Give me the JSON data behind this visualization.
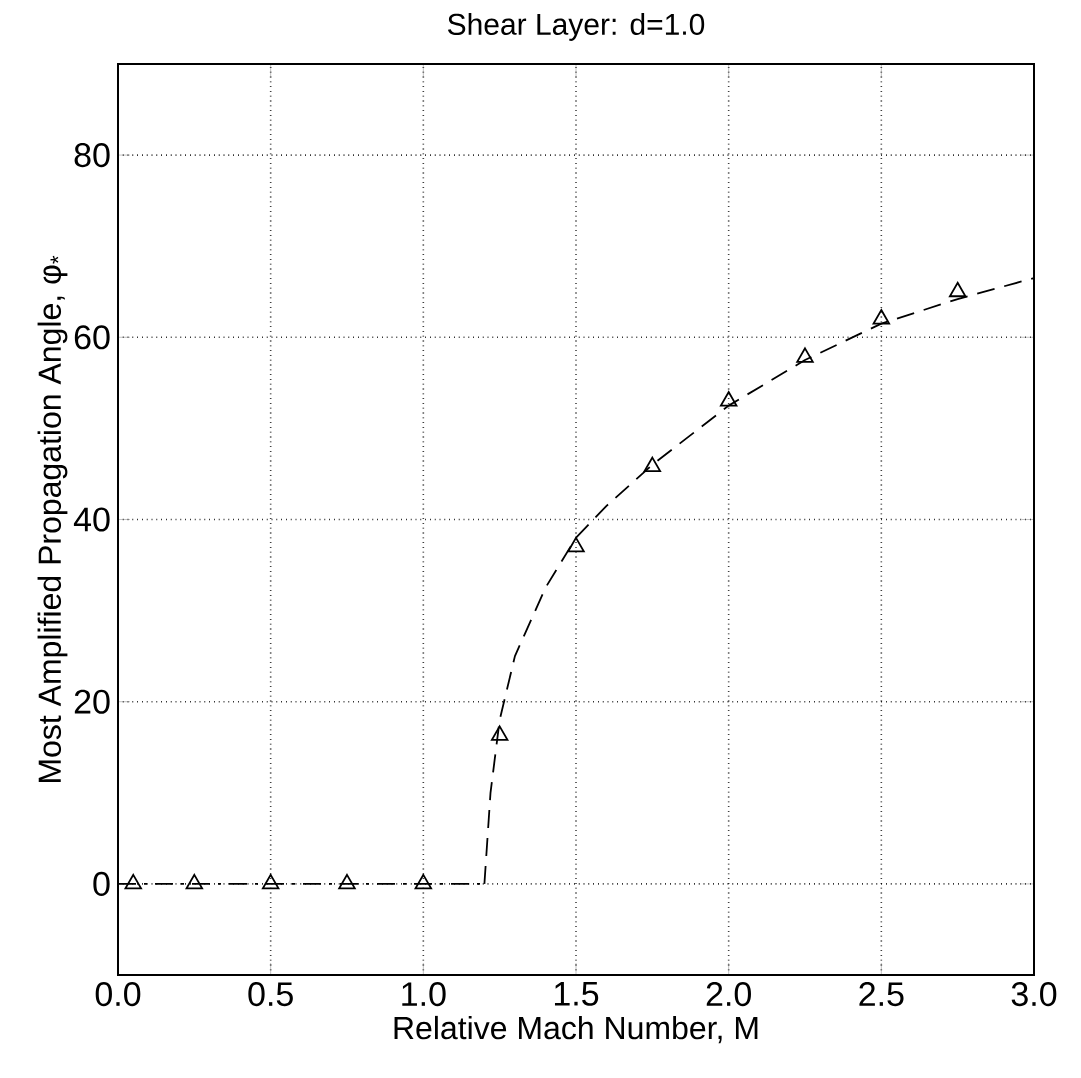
{
  "chart_data": {
    "type": "line",
    "title": "Shear Layer: d=1.0",
    "xlabel": "Relative Mach Number, M",
    "ylabel": "Most Amplified Propagation Angle, φ$_{*}$",
    "xlim": [
      0,
      3.0
    ],
    "ylim": [
      -10,
      90
    ],
    "xticks": [
      {
        "value": 0,
        "label": "0.0"
      },
      0.5,
      {
        "value": 1,
        "label": "1.0"
      },
      1.5,
      {
        "value": 2,
        "label": "2.0"
      },
      2.5,
      {
        "value": 3,
        "label": "3.0"
      }
    ],
    "yticks": [
      0,
      20,
      40,
      60,
      80
    ],
    "grid": true,
    "series": [
      {
        "color": "#000000",
        "line_style": "dashdot",
        "marker": "none",
        "x": [
          0,
          1.2
        ],
        "values": [
          0,
          0
        ]
      },
      {
        "color": "#000000",
        "line_style": "dashed",
        "marker": "none",
        "x": [
          1.2,
          1.22,
          1.25,
          1.3,
          1.4,
          1.5,
          1.6,
          1.75,
          2.0,
          2.25,
          2.5,
          2.75,
          3.0
        ],
        "values": [
          0,
          10,
          18,
          25,
          32.5,
          38,
          41.5,
          46,
          52.5,
          57.5,
          61.5,
          64.2,
          66.5
        ]
      },
      {
        "type": "scatter",
        "color": "#000000",
        "marker": "triangle",
        "x": [
          0.05,
          0.25,
          0.5,
          0.75,
          1.0,
          1.25,
          1.5,
          1.75,
          2.0,
          2.25,
          2.5,
          2.75
        ],
        "values": [
          0,
          0,
          0,
          0,
          0,
          16.3,
          37,
          45.8,
          53,
          57.8,
          62,
          65
        ]
      }
    ]
  }
}
